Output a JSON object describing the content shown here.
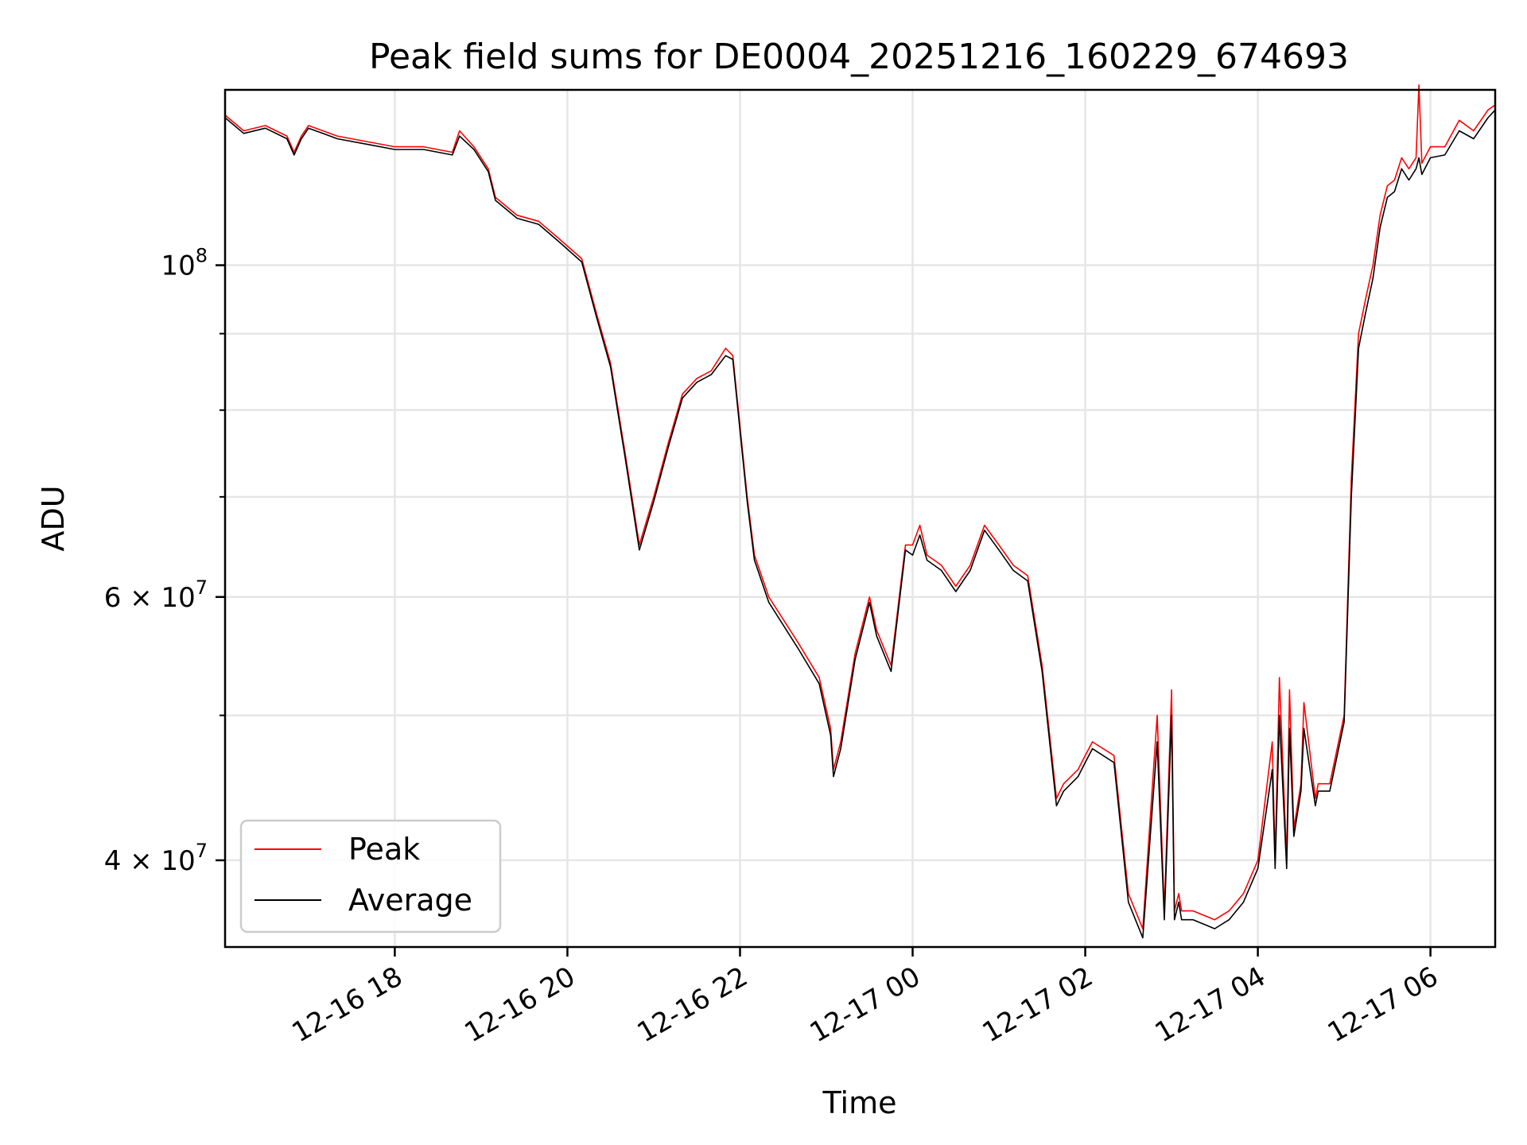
{
  "chart_data": {
    "type": "line",
    "title": "Peak field sums for DE0004_20251216_160229_674693",
    "xlabel": "Time",
    "ylabel": "ADU",
    "yscale": "log",
    "xlim": [
      "2025-12-16 16:02",
      "2025-12-17 06:45"
    ],
    "ylim": [
      35000000,
      131000000
    ],
    "grid": true,
    "legend_position": "lower-left",
    "x_ticks": [
      "2025-12-16 18:00",
      "2025-12-16 20:00",
      "2025-12-16 22:00",
      "2025-12-17 00:00",
      "2025-12-17 02:00",
      "2025-12-17 04:00",
      "2025-12-17 06:00"
    ],
    "x_tick_labels": [
      "12-16 18",
      "12-16 20",
      "12-16 22",
      "12-17 00",
      "12-17 02",
      "12-17 04",
      "12-17 06"
    ],
    "y_major_ticks": [
      {
        "value": 40000000,
        "mantissa": "4",
        "exp": "7"
      },
      {
        "value": 60000000,
        "mantissa": "6",
        "exp": "7"
      },
      {
        "value": 100000000,
        "mantissa": "",
        "exp": "8"
      }
    ],
    "y_minor_ticks": [
      50000000,
      70000000,
      80000000,
      90000000
    ],
    "series": [
      {
        "name": "Peak",
        "color": "#ff0000",
        "x": [
          "2025-12-16 16:02",
          "2025-12-16 16:15",
          "2025-12-16 16:30",
          "2025-12-16 16:45",
          "2025-12-16 16:50",
          "2025-12-16 16:55",
          "2025-12-16 17:00",
          "2025-12-16 17:10",
          "2025-12-16 17:20",
          "2025-12-16 17:40",
          "2025-12-16 18:00",
          "2025-12-16 18:20",
          "2025-12-16 18:40",
          "2025-12-16 18:45",
          "2025-12-16 18:55",
          "2025-12-16 19:05",
          "2025-12-16 19:10",
          "2025-12-16 19:25",
          "2025-12-16 19:40",
          "2025-12-16 19:55",
          "2025-12-16 20:10",
          "2025-12-16 20:20",
          "2025-12-16 20:30",
          "2025-12-16 20:40",
          "2025-12-16 20:50",
          "2025-12-16 21:00",
          "2025-12-16 21:10",
          "2025-12-16 21:20",
          "2025-12-16 21:30",
          "2025-12-16 21:40",
          "2025-12-16 21:50",
          "2025-12-16 21:55",
          "2025-12-16 22:05",
          "2025-12-16 22:10",
          "2025-12-16 22:20",
          "2025-12-16 22:40",
          "2025-12-16 22:55",
          "2025-12-16 23:03",
          "2025-12-16 23:05",
          "2025-12-16 23:10",
          "2025-12-16 23:20",
          "2025-12-16 23:30",
          "2025-12-16 23:35",
          "2025-12-16 23:45",
          "2025-12-16 23:55",
          "2025-12-17 00:00",
          "2025-12-17 00:05",
          "2025-12-17 00:10",
          "2025-12-17 00:20",
          "2025-12-17 00:30",
          "2025-12-17 00:40",
          "2025-12-17 00:50",
          "2025-12-17 01:00",
          "2025-12-17 01:10",
          "2025-12-17 01:20",
          "2025-12-17 01:30",
          "2025-12-17 01:40",
          "2025-12-17 01:45",
          "2025-12-17 01:55",
          "2025-12-17 02:00",
          "2025-12-17 02:05",
          "2025-12-17 02:20",
          "2025-12-17 02:30",
          "2025-12-17 02:40",
          "2025-12-17 02:50",
          "2025-12-17 02:55",
          "2025-12-17 03:00",
          "2025-12-17 03:02",
          "2025-12-17 03:05",
          "2025-12-17 03:07",
          "2025-12-17 03:10",
          "2025-12-17 03:15",
          "2025-12-17 03:30",
          "2025-12-17 03:40",
          "2025-12-17 03:50",
          "2025-12-17 04:00",
          "2025-12-17 04:10",
          "2025-12-17 04:12",
          "2025-12-17 04:15",
          "2025-12-17 04:20",
          "2025-12-17 04:22",
          "2025-12-17 04:25",
          "2025-12-17 04:30",
          "2025-12-17 04:32",
          "2025-12-17 04:40",
          "2025-12-17 04:42",
          "2025-12-17 04:50",
          "2025-12-17 05:00",
          "2025-12-17 05:05",
          "2025-12-17 05:10",
          "2025-12-17 05:15",
          "2025-12-17 05:20",
          "2025-12-17 05:25",
          "2025-12-17 05:30",
          "2025-12-17 05:35",
          "2025-12-17 05:40",
          "2025-12-17 05:45",
          "2025-12-17 05:50",
          "2025-12-17 05:52",
          "2025-12-17 05:54",
          "2025-12-17 06:00",
          "2025-12-17 06:10",
          "2025-12-17 06:20",
          "2025-12-17 06:30",
          "2025-12-17 06:40",
          "2025-12-17 06:45"
        ],
        "y": [
          126000000,
          123000000,
          124000000,
          122000000,
          119000000,
          122000000,
          124000000,
          123000000,
          122000000,
          121000000,
          120000000,
          120000000,
          119000000,
          123000000,
          120000000,
          116000000,
          111000000,
          108000000,
          107000000,
          104000000,
          101000000,
          93000000,
          86000000,
          75000000,
          65000000,
          70000000,
          76000000,
          82000000,
          84000000,
          85000000,
          88000000,
          87000000,
          70000000,
          64000000,
          60000000,
          56000000,
          53000000,
          49000000,
          46000000,
          48000000,
          55000000,
          60000000,
          57000000,
          54000000,
          65000000,
          65000000,
          67000000,
          64000000,
          63000000,
          61000000,
          63000000,
          67000000,
          65000000,
          63000000,
          62000000,
          54000000,
          44000000,
          45000000,
          46000000,
          47000000,
          48000000,
          47000000,
          38000000,
          36000000,
          50000000,
          37000000,
          52000000,
          37000000,
          38000000,
          37000000,
          37000000,
          37000000,
          36500000,
          37000000,
          38000000,
          40000000,
          48000000,
          40000000,
          53000000,
          40000000,
          52000000,
          42000000,
          45000000,
          51000000,
          44000000,
          45000000,
          45000000,
          50000000,
          72000000,
          90000000,
          95000000,
          100000000,
          108000000,
          113000000,
          114000000,
          118000000,
          116000000,
          118000000,
          132000000,
          117000000,
          120000000,
          120000000,
          125000000,
          123000000,
          127000000,
          128000000
        ]
      },
      {
        "name": "Average",
        "color": "#000000",
        "x": [
          "2025-12-16 16:02",
          "2025-12-16 16:15",
          "2025-12-16 16:30",
          "2025-12-16 16:45",
          "2025-12-16 16:50",
          "2025-12-16 16:55",
          "2025-12-16 17:00",
          "2025-12-16 17:10",
          "2025-12-16 17:20",
          "2025-12-16 17:40",
          "2025-12-16 18:00",
          "2025-12-16 18:20",
          "2025-12-16 18:40",
          "2025-12-16 18:45",
          "2025-12-16 18:55",
          "2025-12-16 19:05",
          "2025-12-16 19:10",
          "2025-12-16 19:25",
          "2025-12-16 19:40",
          "2025-12-16 19:55",
          "2025-12-16 20:10",
          "2025-12-16 20:20",
          "2025-12-16 20:30",
          "2025-12-16 20:40",
          "2025-12-16 20:50",
          "2025-12-16 21:00",
          "2025-12-16 21:10",
          "2025-12-16 21:20",
          "2025-12-16 21:30",
          "2025-12-16 21:40",
          "2025-12-16 21:50",
          "2025-12-16 21:55",
          "2025-12-16 22:05",
          "2025-12-16 22:10",
          "2025-12-16 22:20",
          "2025-12-16 22:40",
          "2025-12-16 22:55",
          "2025-12-16 23:03",
          "2025-12-16 23:05",
          "2025-12-16 23:10",
          "2025-12-16 23:20",
          "2025-12-16 23:30",
          "2025-12-16 23:35",
          "2025-12-16 23:45",
          "2025-12-16 23:55",
          "2025-12-17 00:00",
          "2025-12-17 00:05",
          "2025-12-17 00:10",
          "2025-12-17 00:20",
          "2025-12-17 00:30",
          "2025-12-17 00:40",
          "2025-12-17 00:50",
          "2025-12-17 01:00",
          "2025-12-17 01:10",
          "2025-12-17 01:20",
          "2025-12-17 01:30",
          "2025-12-17 01:40",
          "2025-12-17 01:45",
          "2025-12-17 01:55",
          "2025-12-17 02:00",
          "2025-12-17 02:05",
          "2025-12-17 02:20",
          "2025-12-17 02:30",
          "2025-12-17 02:40",
          "2025-12-17 02:50",
          "2025-12-17 02:55",
          "2025-12-17 03:00",
          "2025-12-17 03:02",
          "2025-12-17 03:05",
          "2025-12-17 03:07",
          "2025-12-17 03:10",
          "2025-12-17 03:15",
          "2025-12-17 03:30",
          "2025-12-17 03:40",
          "2025-12-17 03:50",
          "2025-12-17 04:00",
          "2025-12-17 04:10",
          "2025-12-17 04:12",
          "2025-12-17 04:15",
          "2025-12-17 04:20",
          "2025-12-17 04:22",
          "2025-12-17 04:25",
          "2025-12-17 04:30",
          "2025-12-17 04:32",
          "2025-12-17 04:40",
          "2025-12-17 04:42",
          "2025-12-17 04:50",
          "2025-12-17 05:00",
          "2025-12-17 05:05",
          "2025-12-17 05:10",
          "2025-12-17 05:15",
          "2025-12-17 05:20",
          "2025-12-17 05:25",
          "2025-12-17 05:30",
          "2025-12-17 05:35",
          "2025-12-17 05:40",
          "2025-12-17 05:45",
          "2025-12-17 05:50",
          "2025-12-17 05:52",
          "2025-12-17 05:54",
          "2025-12-17 06:00",
          "2025-12-17 06:10",
          "2025-12-17 06:20",
          "2025-12-17 06:30",
          "2025-12-17 06:40",
          "2025-12-17 06:45"
        ],
        "y": [
          125500000,
          122500000,
          123500000,
          121500000,
          118500000,
          121500000,
          123500000,
          122500000,
          121500000,
          120500000,
          119500000,
          119500000,
          118500000,
          122000000,
          119500000,
          115500000,
          110500000,
          107500000,
          106500000,
          103500000,
          100500000,
          92500000,
          85500000,
          74500000,
          64500000,
          69500000,
          75500000,
          81500000,
          83500000,
          84500000,
          87000000,
          86500000,
          69500000,
          63500000,
          59500000,
          55500000,
          52500000,
          48500000,
          45500000,
          47500000,
          54500000,
          59500000,
          56500000,
          53500000,
          64500000,
          64000000,
          66000000,
          63500000,
          62500000,
          60500000,
          62500000,
          66500000,
          64500000,
          62500000,
          61500000,
          53500000,
          43500000,
          44500000,
          45500000,
          46500000,
          47500000,
          46500000,
          37500000,
          35500000,
          48000000,
          36500000,
          50000000,
          36500000,
          37500000,
          36500000,
          36500000,
          36500000,
          36000000,
          36500000,
          37500000,
          39500000,
          46000000,
          39500000,
          50000000,
          39500000,
          49000000,
          41500000,
          44500000,
          49000000,
          43500000,
          44500000,
          44500000,
          49500000,
          70000000,
          88000000,
          93000000,
          98000000,
          106000000,
          111000000,
          112000000,
          116000000,
          114000000,
          116000000,
          118000000,
          115000000,
          118000000,
          118500000,
          123000000,
          121500000,
          125500000,
          127000000
        ]
      }
    ]
  }
}
